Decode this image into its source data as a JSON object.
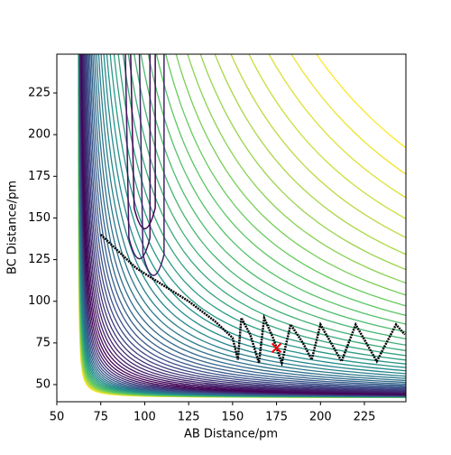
{
  "chart_data": {
    "type": "contour",
    "xlabel": "AB Distance/pm",
    "ylabel": "BC Distance/pm",
    "xlim": [
      50,
      248.6
    ],
    "ylim": [
      39.7,
      248.3
    ],
    "xticks": [
      50,
      75,
      100,
      125,
      150,
      175,
      200,
      225
    ],
    "yticks": [
      50,
      75,
      100,
      125,
      150,
      175,
      200,
      225
    ],
    "trajectory": {
      "color": "#000000",
      "x": [
        75,
        85,
        95,
        110,
        125,
        140,
        150,
        153,
        155,
        160,
        165,
        168,
        173,
        178,
        183,
        190,
        195,
        200,
        206,
        212,
        220,
        226,
        232,
        243,
        248
      ],
      "y": [
        140,
        130,
        120,
        110,
        100,
        88,
        78,
        65,
        90,
        80,
        63,
        90,
        78,
        63,
        86,
        75,
        65,
        86,
        75,
        64,
        86,
        75,
        64,
        86,
        80
      ]
    },
    "marker": {
      "x": 175,
      "y": 72,
      "color": "#ff0000"
    }
  }
}
